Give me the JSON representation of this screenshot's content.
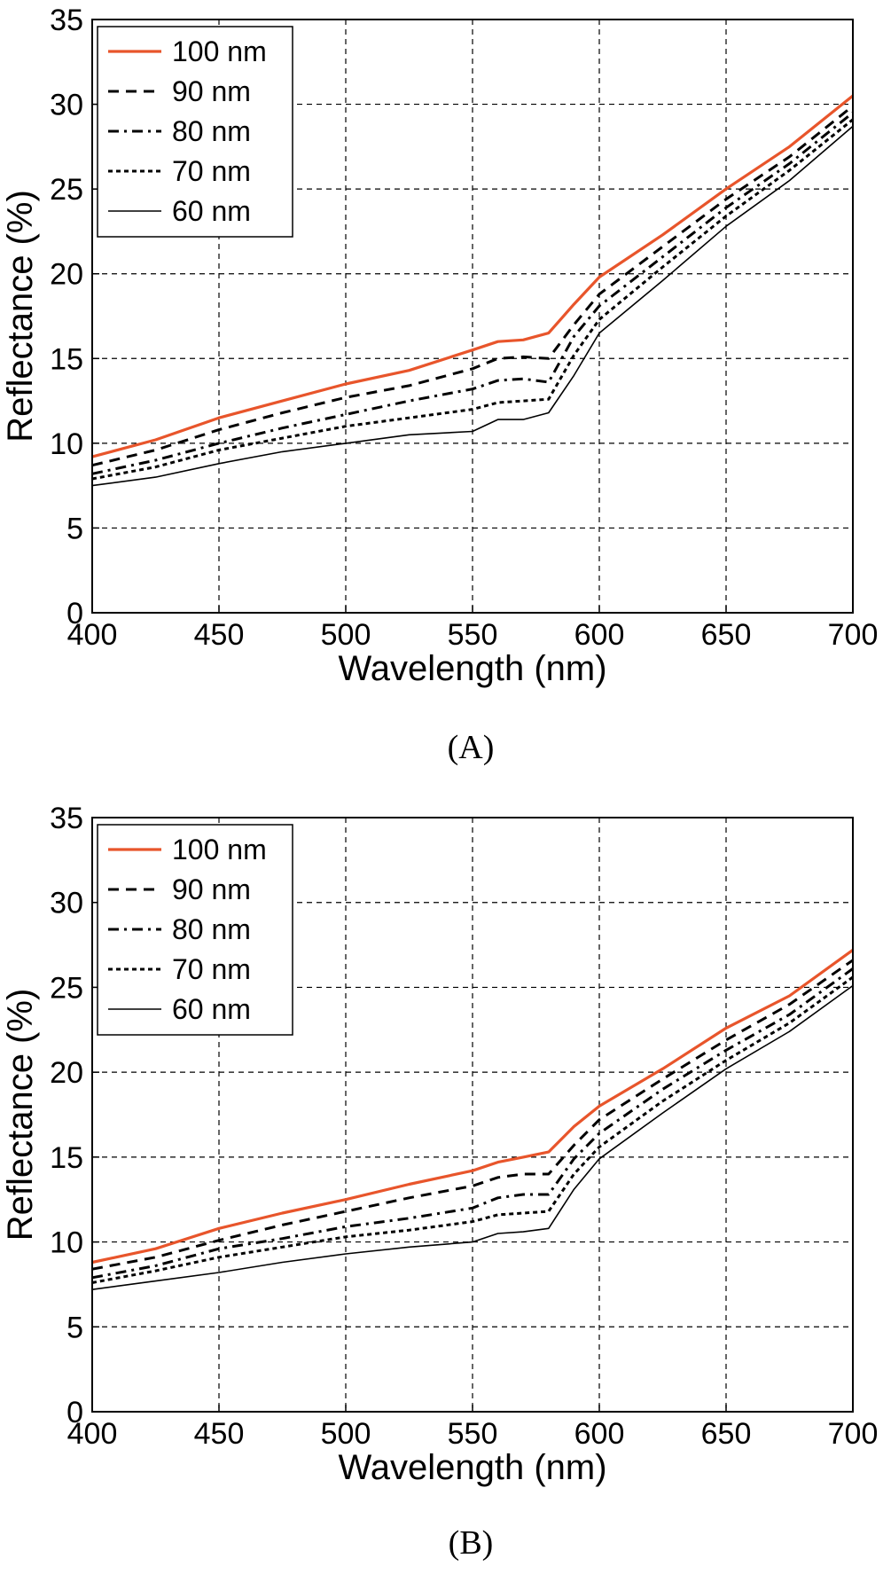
{
  "chart_data": [
    {
      "type": "line",
      "panel_label": "(A)",
      "xlabel": "Wavelength (nm)",
      "ylabel": "Reflectance (%)",
      "xlim": [
        400,
        700
      ],
      "ylim": [
        0,
        35
      ],
      "xticks": [
        "400",
        "450",
        "500",
        "550",
        "600",
        "650",
        "700"
      ],
      "yticks": [
        "0",
        "5",
        "10",
        "15",
        "20",
        "25",
        "30",
        "35"
      ],
      "grid": true,
      "legend_position": "top-left",
      "x": [
        400,
        425,
        450,
        475,
        500,
        525,
        550,
        560,
        570,
        580,
        590,
        600,
        625,
        650,
        675,
        700
      ],
      "series": [
        {
          "name": "100  nm",
          "style": "solid",
          "color": "#e8552b",
          "values": [
            9.2,
            10.2,
            11.5,
            12.5,
            13.5,
            14.3,
            15.5,
            16.0,
            16.1,
            16.5,
            18.2,
            19.8,
            22.3,
            25.0,
            27.5,
            30.5
          ]
        },
        {
          "name": "90  nm",
          "style": "dashed",
          "color": "#000000",
          "values": [
            8.7,
            9.6,
            10.8,
            11.8,
            12.7,
            13.4,
            14.4,
            15.0,
            15.1,
            15.0,
            17.0,
            18.8,
            21.6,
            24.4,
            26.9,
            29.9
          ]
        },
        {
          "name": "80  nm",
          "style": "dashdot",
          "color": "#000000",
          "values": [
            8.2,
            9.0,
            10.0,
            10.9,
            11.7,
            12.5,
            13.2,
            13.7,
            13.8,
            13.6,
            16.3,
            18.1,
            21.0,
            23.9,
            26.5,
            29.5
          ]
        },
        {
          "name": "70  nm",
          "style": "dotted",
          "color": "#000000",
          "values": [
            7.9,
            8.6,
            9.6,
            10.3,
            11.0,
            11.5,
            12.0,
            12.4,
            12.5,
            12.6,
            15.2,
            17.3,
            20.4,
            23.4,
            26.1,
            29.1
          ]
        },
        {
          "name": "60  nm",
          "style": "thin",
          "color": "#000000",
          "values": [
            7.5,
            8.0,
            8.8,
            9.5,
            10.0,
            10.5,
            10.7,
            11.4,
            11.4,
            11.8,
            14.0,
            16.5,
            19.6,
            22.8,
            25.5,
            28.7
          ]
        }
      ]
    },
    {
      "type": "line",
      "panel_label": "(B)",
      "xlabel": "Wavelength (nm)",
      "ylabel": "Reflectance (%)",
      "xlim": [
        400,
        700
      ],
      "ylim": [
        0,
        35
      ],
      "xticks": [
        "400",
        "450",
        "500",
        "550",
        "600",
        "650",
        "700"
      ],
      "yticks": [
        "0",
        "5",
        "10",
        "15",
        "20",
        "25",
        "30",
        "35"
      ],
      "grid": true,
      "legend_position": "top-left",
      "x": [
        400,
        425,
        450,
        475,
        500,
        525,
        550,
        560,
        570,
        580,
        590,
        600,
        625,
        650,
        675,
        700
      ],
      "series": [
        {
          "name": "100  nm",
          "style": "solid",
          "color": "#e8552b",
          "values": [
            8.8,
            9.6,
            10.8,
            11.7,
            12.5,
            13.4,
            14.2,
            14.7,
            15.0,
            15.3,
            16.8,
            18.0,
            20.2,
            22.6,
            24.5,
            27.2
          ]
        },
        {
          "name": "90  nm",
          "style": "dashed",
          "color": "#000000",
          "values": [
            8.4,
            9.1,
            10.1,
            11.0,
            11.8,
            12.6,
            13.3,
            13.8,
            14.0,
            14.0,
            15.7,
            17.2,
            19.6,
            21.9,
            24.0,
            26.6
          ]
        },
        {
          "name": "80  nm",
          "style": "dashdot",
          "color": "#000000",
          "values": [
            7.9,
            8.6,
            9.6,
            10.2,
            10.9,
            11.4,
            12.0,
            12.6,
            12.8,
            12.8,
            14.9,
            16.4,
            19.0,
            21.3,
            23.4,
            26.1
          ]
        },
        {
          "name": "70  nm",
          "style": "dotted",
          "color": "#000000",
          "values": [
            7.6,
            8.3,
            9.1,
            9.7,
            10.3,
            10.7,
            11.2,
            11.6,
            11.7,
            11.8,
            14.0,
            15.6,
            18.3,
            20.7,
            22.9,
            25.6
          ]
        },
        {
          "name": "60  nm",
          "style": "thin",
          "color": "#000000",
          "values": [
            7.2,
            7.7,
            8.2,
            8.8,
            9.3,
            9.7,
            10.0,
            10.5,
            10.6,
            10.8,
            13.1,
            14.9,
            17.6,
            20.2,
            22.4,
            25.1
          ]
        }
      ]
    }
  ]
}
